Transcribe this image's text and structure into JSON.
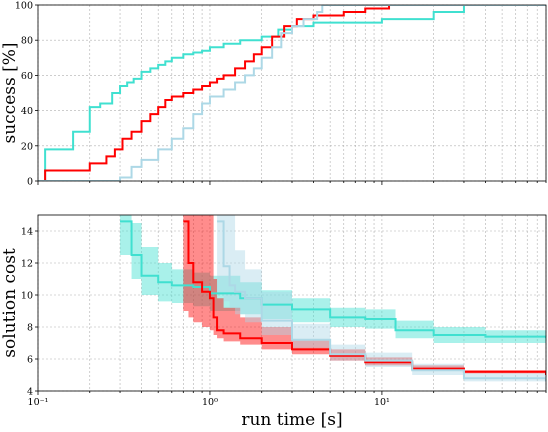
{
  "chart_data": [
    {
      "type": "line",
      "ylabel": "success [%]",
      "xlabel": "",
      "xscale": "log",
      "xlim": [
        0.1,
        90
      ],
      "ylim": [
        0,
        100
      ],
      "yticks": [
        0,
        20,
        40,
        60,
        80,
        100
      ],
      "grid": true,
      "legend": "none",
      "series": [
        {
          "color": "#40e0d0",
          "band": false,
          "x": [
            0.1,
            0.11,
            0.15,
            0.16,
            0.2,
            0.23,
            0.27,
            0.3,
            0.33,
            0.36,
            0.4,
            0.45,
            0.5,
            0.55,
            0.6,
            0.7,
            0.8,
            0.9,
            1.0,
            1.2,
            1.5,
            2.0,
            2.5,
            3.0,
            4.0,
            6.0,
            10.0,
            20.0,
            30.0,
            90.0
          ],
          "y": [
            0,
            18,
            18,
            28,
            42,
            44,
            50,
            54,
            56,
            58,
            62,
            64,
            66,
            68,
            70,
            72,
            73,
            74,
            76,
            78,
            80,
            82,
            86,
            88,
            90,
            90,
            92,
            96,
            100,
            100
          ]
        },
        {
          "color": "#ff0000",
          "band": false,
          "x": [
            0.1,
            0.11,
            0.2,
            0.25,
            0.28,
            0.31,
            0.35,
            0.4,
            0.45,
            0.5,
            0.55,
            0.6,
            0.7,
            0.8,
            0.9,
            1.0,
            1.1,
            1.2,
            1.4,
            1.6,
            1.8,
            2.0,
            2.3,
            2.7,
            3.2,
            4.0,
            6.0,
            8.0,
            11.0
          ],
          "y": [
            0,
            6,
            10,
            14,
            18,
            24,
            28,
            34,
            38,
            42,
            46,
            48,
            50,
            52,
            54,
            56,
            58,
            60,
            64,
            68,
            72,
            76,
            82,
            88,
            92,
            94,
            96,
            98,
            100
          ]
        },
        {
          "color": "#add8e6",
          "band": false,
          "x": [
            0.1,
            0.2,
            0.3,
            0.35,
            0.4,
            0.5,
            0.6,
            0.7,
            0.8,
            0.9,
            1.0,
            1.2,
            1.4,
            1.6,
            1.8,
            2.0,
            2.3,
            2.6,
            3.0,
            3.5,
            4.2,
            4.5
          ],
          "y": [
            0,
            0,
            2,
            8,
            12,
            18,
            24,
            30,
            38,
            44,
            48,
            52,
            56,
            60,
            64,
            70,
            76,
            84,
            88,
            92,
            96,
            100
          ]
        }
      ]
    },
    {
      "type": "line",
      "ylabel": "solution cost",
      "xlabel": "run time [s]",
      "xscale": "log",
      "xlim": [
        0.1,
        90
      ],
      "ylim": [
        4,
        15
      ],
      "yticks": [
        4,
        6,
        8,
        10,
        12,
        14
      ],
      "xticks": [
        {
          "value": 0.1,
          "label": "10⁻¹"
        },
        {
          "value": 1,
          "label": "10⁰"
        },
        {
          "value": 10,
          "label": "10¹"
        }
      ],
      "grid": true,
      "legend": "none",
      "series": [
        {
          "color": "#40e0d0",
          "band": true,
          "x": [
            0.3,
            0.35,
            0.4,
            0.5,
            0.6,
            0.8,
            1.0,
            1.5,
            2.0,
            3.0,
            5.0,
            8.0,
            12.0,
            20.0,
            40.0,
            90.0
          ],
          "y": [
            14.6,
            12.5,
            11.2,
            10.8,
            10.6,
            10.5,
            10.1,
            9.8,
            9.4,
            9.1,
            8.6,
            8.5,
            7.8,
            7.5,
            7.4,
            7.3
          ],
          "lo": [
            12.5,
            11.0,
            10.0,
            9.6,
            9.5,
            9.3,
            9.0,
            8.8,
            8.5,
            8.3,
            8.0,
            7.9,
            7.3,
            7.0,
            7.0,
            6.9
          ],
          "hi": [
            15.0,
            14.5,
            13.0,
            12.0,
            11.6,
            11.4,
            11.2,
            10.8,
            10.3,
            9.8,
            9.2,
            9.1,
            8.4,
            8.0,
            7.8,
            7.7
          ]
        },
        {
          "color": "#ff0000",
          "band": true,
          "x": [
            0.7,
            0.75,
            0.8,
            0.9,
            1.0,
            1.05,
            1.1,
            1.2,
            1.5,
            2.0,
            3.0,
            5.0,
            8.0,
            15.0,
            30.0,
            90.0
          ],
          "y": [
            14.6,
            12.0,
            10.8,
            10.2,
            9.8,
            8.6,
            7.8,
            7.6,
            7.3,
            7.0,
            6.6,
            6.2,
            5.8,
            5.4,
            5.2,
            5.0
          ],
          "lo": [
            9.0,
            8.6,
            8.3,
            8.0,
            7.8,
            7.5,
            7.3,
            7.1,
            6.9,
            6.6,
            6.3,
            5.9,
            5.6,
            5.3,
            5.1,
            4.9
          ],
          "hi": [
            15.0,
            15.0,
            15.0,
            15.0,
            15.0,
            11.0,
            9.8,
            9.2,
            8.6,
            8.0,
            7.2,
            6.6,
            6.1,
            5.6,
            5.3,
            5.1
          ]
        },
        {
          "color": "#add8e6",
          "band": true,
          "x": [
            1.1,
            1.2,
            1.3,
            1.4,
            1.6,
            2.0,
            3.0,
            5.0,
            8.0,
            15.0,
            30.0,
            90.0
          ],
          "y": [
            14.6,
            11.8,
            10.6,
            10.2,
            9.8,
            8.4,
            7.2,
            6.3,
            5.9,
            5.3,
            4.8,
            4.6
          ],
          "lo": [
            10.0,
            9.6,
            9.2,
            8.8,
            8.3,
            7.5,
            6.7,
            5.9,
            5.5,
            5.0,
            4.6,
            4.5
          ],
          "hi": [
            15.0,
            15.0,
            15.0,
            12.8,
            11.6,
            10.2,
            8.2,
            6.9,
            6.4,
            5.7,
            5.1,
            4.9
          ]
        }
      ]
    }
  ]
}
